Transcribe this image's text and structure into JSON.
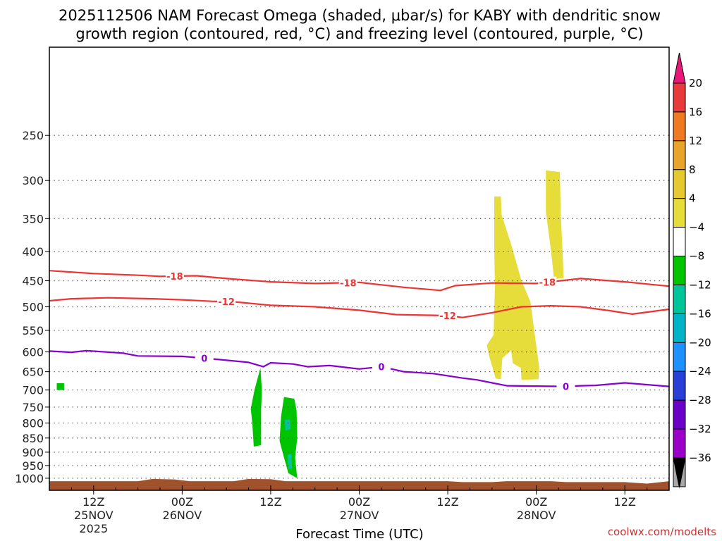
{
  "chart_data": {
    "type": "time-height cross-section",
    "title_line1": "2025112506 NAM Forecast Omega (shaded, μbar/s) for KABY with dendritic snow",
    "title_line2": "growth region (contoured, red, °C) and freezing level (contoured, purple, °C)",
    "xlabel": "Forecast Time (UTC)",
    "credit": "coolwx.com/modelts",
    "colors": {
      "red_contour": "#ee3333",
      "purple_contour": "#8800cc",
      "ground": "#a0522d",
      "credit": "#cc3333"
    },
    "y_axis": {
      "label_unit": "hPa",
      "range": [
        1050,
        175
      ],
      "ticks": [
        250,
        300,
        350,
        400,
        450,
        500,
        550,
        600,
        650,
        700,
        750,
        800,
        850,
        900,
        950,
        1000
      ]
    },
    "x_axis": {
      "range_hours": [
        0,
        84
      ],
      "ticks": [
        {
          "hour": 6,
          "l1": "12Z",
          "l2": "25NOV",
          "l3": "2025"
        },
        {
          "hour": 18,
          "l1": "00Z",
          "l2": "26NOV",
          "l3": ""
        },
        {
          "hour": 30,
          "l1": "12Z",
          "l2": "",
          "l3": ""
        },
        {
          "hour": 42,
          "l1": "00Z",
          "l2": "27NOV",
          "l3": ""
        },
        {
          "hour": 54,
          "l1": "12Z",
          "l2": "",
          "l3": ""
        },
        {
          "hour": 66,
          "l1": "00Z",
          "l2": "28NOV",
          "l3": ""
        },
        {
          "hour": 78,
          "l1": "12Z",
          "l2": "",
          "l3": ""
        }
      ]
    },
    "colorbar": {
      "levels": [
        "20",
        "16",
        "12",
        "8",
        "4",
        "−4",
        "−8",
        "−12",
        "−16",
        "−20",
        "−24",
        "−28",
        "−32",
        "−36"
      ],
      "colors": [
        "#e83a3a",
        "#ee7a22",
        "#e8a52a",
        "#e6c92e",
        "#e6dc3a",
        "#ffffff",
        "#00c400",
        "#00c49a",
        "#00b4c8",
        "#1e90ff",
        "#2a3fd8",
        "#6a00c8",
        "#9a00c8",
        "#a8a8a8"
      ],
      "over_color": "#e81878",
      "under_color": "#000000"
    },
    "series": [
      {
        "name": "-18 °C (dendritic growth)",
        "label": "-18",
        "color": "#ee3333",
        "points": [
          [
            0,
            432
          ],
          [
            6,
            437
          ],
          [
            12,
            440
          ],
          [
            15,
            442
          ],
          [
            20,
            441
          ],
          [
            24,
            446
          ],
          [
            30,
            452
          ],
          [
            36,
            455
          ],
          [
            42,
            453
          ],
          [
            48,
            462
          ],
          [
            53,
            468
          ],
          [
            55,
            459
          ],
          [
            60,
            454
          ],
          [
            66,
            455
          ],
          [
            72,
            446
          ],
          [
            78,
            452
          ],
          [
            84,
            460
          ]
        ],
        "label_positions": [
          17,
          40.5,
          67.5
        ]
      },
      {
        "name": "-12 °C (dendritic growth)",
        "label": "-12",
        "color": "#ee3333",
        "points": [
          [
            0,
            488
          ],
          [
            3,
            484
          ],
          [
            8,
            482
          ],
          [
            14,
            484
          ],
          [
            18,
            486
          ],
          [
            22,
            489
          ],
          [
            25,
            490
          ],
          [
            30,
            497
          ],
          [
            36,
            500
          ],
          [
            42,
            507
          ],
          [
            47,
            516
          ],
          [
            54,
            518
          ],
          [
            56,
            522
          ],
          [
            60,
            512
          ],
          [
            64,
            500
          ],
          [
            68,
            498
          ],
          [
            72,
            500
          ],
          [
            76,
            508
          ],
          [
            79,
            515
          ],
          [
            84,
            505
          ]
        ],
        "label_positions": [
          24,
          54
        ]
      },
      {
        "name": "0 °C (freezing level)",
        "label": "0",
        "color": "#8800cc",
        "points": [
          [
            0,
            598
          ],
          [
            3,
            601
          ],
          [
            5,
            597
          ],
          [
            10,
            603
          ],
          [
            12,
            610
          ],
          [
            18,
            611
          ],
          [
            22,
            617
          ],
          [
            27,
            626
          ],
          [
            29,
            637
          ],
          [
            30,
            627
          ],
          [
            33,
            630
          ],
          [
            35,
            637
          ],
          [
            38,
            634
          ],
          [
            42,
            643
          ],
          [
            45,
            637
          ],
          [
            48,
            650
          ],
          [
            52,
            655
          ],
          [
            56,
            667
          ],
          [
            58,
            672
          ],
          [
            60,
            680
          ],
          [
            62,
            688
          ],
          [
            66,
            689
          ],
          [
            70,
            690
          ],
          [
            72,
            688
          ],
          [
            74,
            687
          ],
          [
            78,
            680
          ],
          [
            84,
            690
          ]
        ],
        "label_positions": [
          21,
          45,
          70
        ]
      }
    ],
    "omega_regions": [
      {
        "value_range": "4 to 8",
        "color": "#e6dc3a",
        "points": [
          [
            60.3,
            320
          ],
          [
            61.2,
            320
          ],
          [
            61.3,
            345
          ],
          [
            62.5,
            385
          ],
          [
            64,
            450
          ],
          [
            65.2,
            490
          ],
          [
            65.8,
            560
          ],
          [
            66.4,
            640
          ],
          [
            66.3,
            670
          ],
          [
            64,
            672
          ],
          [
            63.9,
            640
          ],
          [
            62.8,
            628
          ],
          [
            62.6,
            596
          ],
          [
            61.4,
            615
          ],
          [
            61.2,
            670
          ],
          [
            60.5,
            668
          ],
          [
            59.6,
            610
          ],
          [
            59.3,
            584
          ],
          [
            60.2,
            560
          ],
          [
            60.4,
            460
          ],
          [
            60.3,
            400
          ]
        ]
      },
      {
        "value_range": "4 to 8",
        "color": "#e6dc3a",
        "points": [
          [
            67.3,
            288
          ],
          [
            69.2,
            290
          ],
          [
            69.3,
            340
          ],
          [
            69.6,
            410
          ],
          [
            69.7,
            445
          ],
          [
            68.4,
            447
          ],
          [
            68,
            400
          ],
          [
            67.3,
            340
          ]
        ]
      },
      {
        "value_range": "-4 to -8",
        "color": "#00c400",
        "points": [
          [
            28.6,
            640
          ],
          [
            27.8,
            700
          ],
          [
            27.3,
            755
          ],
          [
            27.5,
            800
          ],
          [
            27.7,
            880
          ],
          [
            28.7,
            875
          ],
          [
            28.7,
            760
          ],
          [
            28.8,
            700
          ]
        ]
      },
      {
        "value_range": "-4 to -8",
        "color": "#00c400",
        "points": [
          [
            31.8,
            720
          ],
          [
            33.2,
            725
          ],
          [
            33.5,
            760
          ],
          [
            33.6,
            850
          ],
          [
            33.3,
            920
          ],
          [
            33.6,
            1000
          ],
          [
            32.4,
            980
          ],
          [
            31.8,
            920
          ],
          [
            31.2,
            860
          ],
          [
            31.4,
            780
          ]
        ]
      },
      {
        "value_range": "-4 to -8",
        "color": "#00c400",
        "points": [
          [
            1,
            681
          ],
          [
            2,
            681
          ],
          [
            2,
            700
          ],
          [
            1,
            700
          ]
        ]
      },
      {
        "value_range": "-8 to -12",
        "color": "#00c49a",
        "points": [
          [
            31.9,
            790
          ],
          [
            32.6,
            788
          ],
          [
            32.7,
            820
          ],
          [
            32,
            825
          ]
        ]
      },
      {
        "value_range": "-8 to -12",
        "color": "#00c49a",
        "points": [
          [
            32.3,
            910
          ],
          [
            32.8,
            905
          ],
          [
            32.9,
            960
          ],
          [
            32.4,
            965
          ]
        ]
      }
    ],
    "ground_profile": [
      [
        0,
        1012
      ],
      [
        12,
        1012
      ],
      [
        14,
        1003
      ],
      [
        17,
        1005
      ],
      [
        19,
        1012
      ],
      [
        25,
        1012
      ],
      [
        27,
        1003
      ],
      [
        30,
        1004
      ],
      [
        32,
        1012
      ],
      [
        54,
        1012
      ],
      [
        56,
        1016
      ],
      [
        60,
        1016
      ],
      [
        62,
        1012
      ],
      [
        68,
        1012
      ],
      [
        70,
        1016
      ],
      [
        78,
        1016
      ],
      [
        81,
        1022
      ],
      [
        84,
        1012
      ]
    ]
  }
}
